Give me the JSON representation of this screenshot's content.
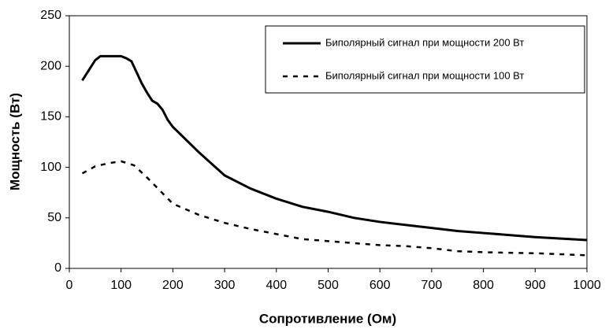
{
  "chart_data": {
    "type": "line",
    "xlabel": "Сопротивление (Ом)",
    "ylabel": "Мощность (Вт)",
    "xlim": [
      0,
      1000
    ],
    "xticks": [
      0,
      100,
      200,
      300,
      400,
      500,
      600,
      700,
      800,
      900,
      1000
    ],
    "ylim": [
      0,
      250
    ],
    "yticks": [
      0,
      50,
      100,
      150,
      200,
      250
    ],
    "grid": false,
    "legend": "upper right",
    "series": [
      {
        "name": "Биполярный сигнал при мощности 200 Вт",
        "color": "#000000",
        "dash": false,
        "x": [
          25,
          40,
          50,
          60,
          75,
          100,
          110,
          120,
          130,
          140,
          150,
          160,
          170,
          180,
          190,
          200,
          250,
          300,
          350,
          400,
          450,
          500,
          550,
          600,
          700,
          750,
          800,
          900,
          1000
        ],
        "values": [
          186,
          198,
          206,
          210,
          210,
          210,
          208,
          205,
          194,
          183,
          174,
          166,
          163,
          157,
          147,
          140,
          115,
          92,
          79,
          69,
          61,
          56,
          50,
          46,
          40,
          37,
          35,
          31,
          28
        ]
      },
      {
        "name": "Биполярный сигнал при мощности 100 Вт",
        "color": "#000000",
        "dash": true,
        "x": [
          25,
          50,
          75,
          100,
          125,
          150,
          175,
          200,
          250,
          300,
          350,
          400,
          450,
          500,
          600,
          650,
          700,
          750,
          800,
          900,
          1000
        ],
        "values": [
          94,
          101,
          104,
          106,
          102,
          90,
          77,
          64,
          53,
          45,
          39,
          34,
          29,
          27,
          23,
          22,
          20,
          17,
          16,
          15,
          13
        ]
      }
    ]
  }
}
